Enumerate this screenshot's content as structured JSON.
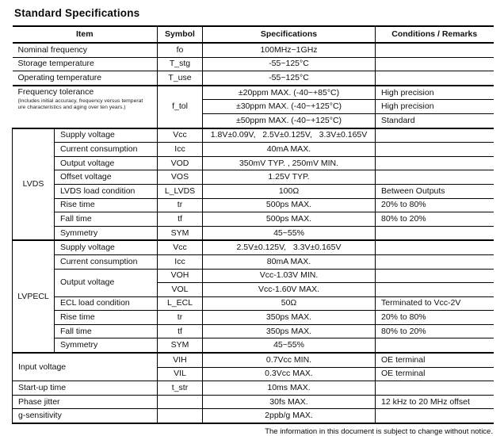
{
  "page": {
    "title": "Standard Specifications",
    "footer": "The information in this document is subject to change without notice."
  },
  "table": {
    "headers": {
      "item": "Item",
      "symbol": "Symbol",
      "spec": "Specifications",
      "cond": "Conditions / Remarks"
    },
    "simple_rows": [
      {
        "item": "Nominal frequency",
        "symbol": "fo",
        "spec": "100MHz~1GHz",
        "cond": ""
      },
      {
        "item": "Storage temperature",
        "symbol": "T_stg",
        "spec": "-55~125°C",
        "cond": ""
      },
      {
        "item": "Operating temperature",
        "symbol": "T_use",
        "spec": "-55~125°C",
        "cond": ""
      }
    ],
    "frequency_tolerance": {
      "item": "Frequency tolerance",
      "note1": "(Includes initial accuracy, frequency versus temperat",
      "note2": "ure characteristics and aging over ten years.)",
      "symbol": "f_tol",
      "rows": [
        {
          "spec": "±20ppm MAX. (-40~+85°C)",
          "cond": "High precision"
        },
        {
          "spec": "±30ppm MAX. (-40~+125°C)",
          "cond": "High precision"
        },
        {
          "spec": "±50ppm MAX. (-40~+125°C)",
          "cond": "Standard"
        }
      ]
    },
    "lvds": {
      "group": "LVDS",
      "rows": [
        {
          "item": "Supply voltage",
          "symbol": "Vcc",
          "spec": "1.8V±0.09V,   2.5V±0.125V,   3.3V±0.165V",
          "cond": ""
        },
        {
          "item": "Current consumption",
          "symbol": "Icc",
          "spec": "40mA MAX.",
          "cond": ""
        },
        {
          "item": "Output voltage",
          "symbol": "VOD",
          "spec": "350mV TYP. , 250mV MIN.",
          "cond": ""
        },
        {
          "item": "Offset voltage",
          "symbol": "VOS",
          "spec": "1.25V TYP.",
          "cond": ""
        },
        {
          "item": "LVDS load condition",
          "symbol": "L_LVDS",
          "spec": "100Ω",
          "cond": "Between Outputs"
        },
        {
          "item": "Rise time",
          "symbol": "tr",
          "spec": "500ps MAX.",
          "cond": "20% to 80%"
        },
        {
          "item": "Fall time",
          "symbol": "tf",
          "spec": "500ps MAX.",
          "cond": "80% to 20%"
        },
        {
          "item": "Symmetry",
          "symbol": "SYM",
          "spec": "45~55%",
          "cond": ""
        }
      ]
    },
    "lvpecl": {
      "group": "LVPECL",
      "supply": {
        "item": "Supply voltage",
        "symbol": "Vcc",
        "spec": "2.5V±0.125V,   3.3V±0.165V",
        "cond": ""
      },
      "current": {
        "item": "Current consumption",
        "symbol": "Icc",
        "spec": "80mA MAX.",
        "cond": ""
      },
      "output": {
        "item": "Output voltage",
        "voh": {
          "symbol": "VOH",
          "spec": "Vcc-1.03V MIN.",
          "cond": ""
        },
        "vol": {
          "symbol": "VOL",
          "spec": "Vcc-1.60V MAX.",
          "cond": ""
        }
      },
      "ecl_load": {
        "item": "ECL load condition",
        "symbol": "L_ECL",
        "spec": "50Ω",
        "cond": "Terminated to Vcc-2V"
      },
      "rise": {
        "item": "Rise time",
        "symbol": "tr",
        "spec": "350ps MAX.",
        "cond": "20% to 80%"
      },
      "fall": {
        "item": "Fall time",
        "symbol": "tf",
        "spec": "350ps MAX.",
        "cond": "80% to 20%"
      },
      "symmetry": {
        "item": "Symmetry",
        "symbol": "SYM",
        "spec": "45~55%",
        "cond": ""
      }
    },
    "input_voltage": {
      "item": "Input voltage",
      "vih": {
        "symbol": "VIH",
        "spec": "0.7Vcc MIN.",
        "cond": "OE terminal"
      },
      "vil": {
        "symbol": "VIL",
        "spec": "0.3Vcc MAX.",
        "cond": "OE terminal"
      }
    },
    "startup": {
      "item": "Start-up time",
      "symbol": "t_str",
      "spec": "10ms MAX.",
      "cond": ""
    },
    "phase_jitter": {
      "item": "Phase jitter",
      "symbol": "",
      "spec": "30fs MAX.",
      "cond": "12 kHz to 20 MHz offset"
    },
    "g_sensitivity": {
      "item": "g-sensitivity",
      "symbol": "",
      "spec": "2ppb/g MAX.",
      "cond": ""
    }
  }
}
